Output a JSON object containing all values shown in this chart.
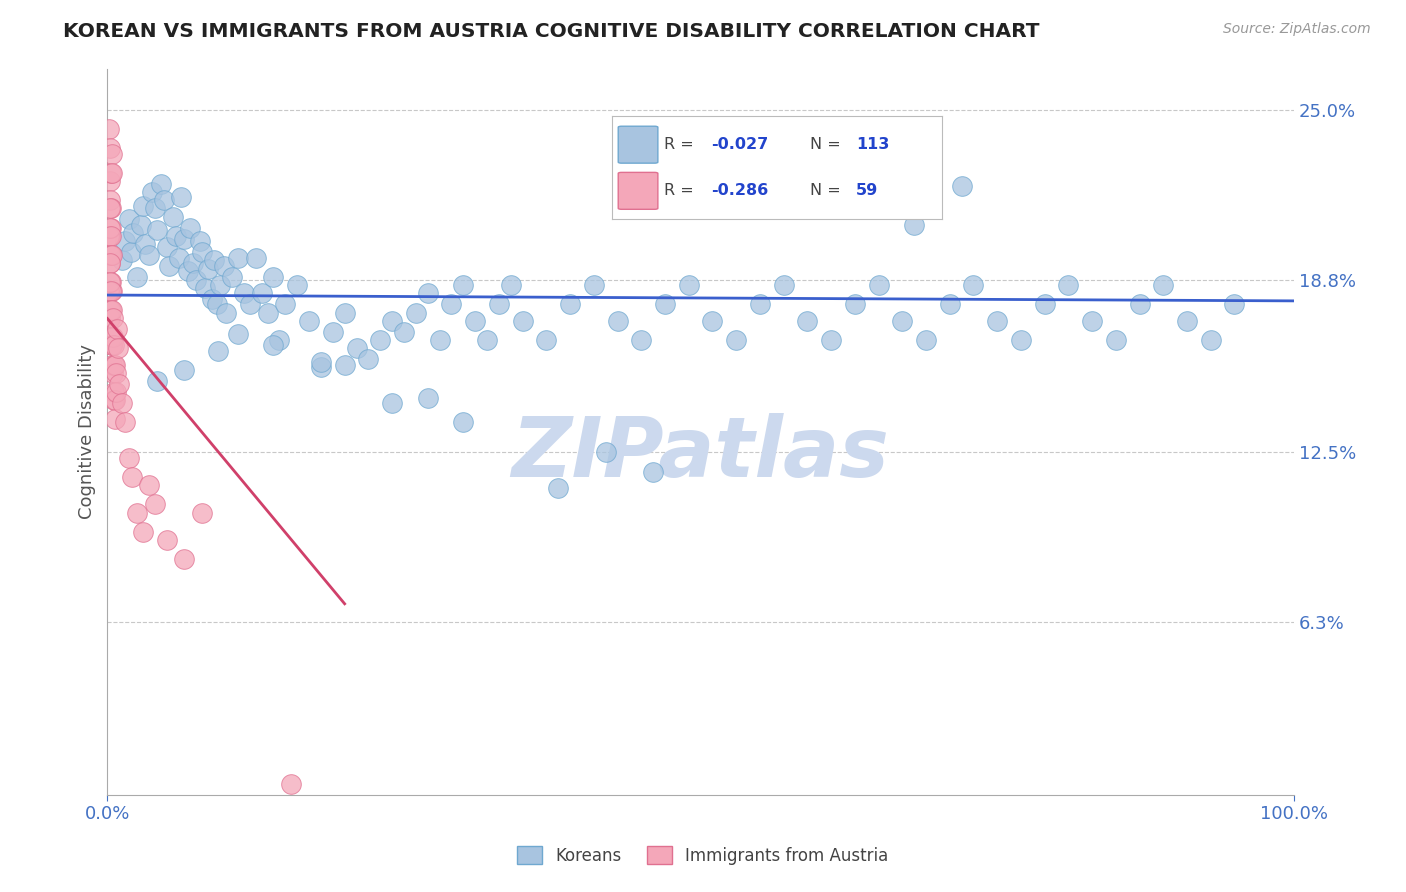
{
  "title": "KOREAN VS IMMIGRANTS FROM AUSTRIA COGNITIVE DISABILITY CORRELATION CHART",
  "source": "Source: ZipAtlas.com",
  "ylabel": "Cognitive Disability",
  "xlim": [
    0.0,
    100.0
  ],
  "ylim": [
    0.0,
    26.5
  ],
  "yticks": [
    6.3,
    12.5,
    18.8,
    25.0
  ],
  "xticklabels": [
    "0.0%",
    "100.0%"
  ],
  "yticklabels": [
    "6.3%",
    "12.5%",
    "18.8%",
    "25.0%"
  ],
  "korean_color": "#a8c4e0",
  "korean_edge": "#6fa8d0",
  "korean_line": "#3a5fcd",
  "austria_color": "#f4a7b9",
  "austria_edge": "#e07090",
  "austria_line": "#d0406a",
  "watermark": "ZIPatlas",
  "watermark_color": "#ccd9ee",
  "background_color": "#ffffff",
  "grid_color": "#c8c8c8",
  "title_color": "#222222",
  "tick_label_color": "#4472c4",
  "R_korean": -0.027,
  "N_korean": 113,
  "R_austria": -0.286,
  "N_austria": 59,
  "korean_x": [
    1.2,
    1.5,
    1.8,
    2.0,
    2.2,
    2.5,
    2.8,
    3.0,
    3.2,
    3.5,
    3.8,
    4.0,
    4.2,
    4.5,
    4.8,
    5.0,
    5.2,
    5.5,
    5.8,
    6.0,
    6.2,
    6.5,
    6.8,
    7.0,
    7.2,
    7.5,
    7.8,
    8.0,
    8.2,
    8.5,
    8.8,
    9.0,
    9.2,
    9.5,
    9.8,
    10.0,
    10.5,
    11.0,
    11.5,
    12.0,
    12.5,
    13.0,
    13.5,
    14.0,
    14.5,
    15.0,
    16.0,
    17.0,
    18.0,
    19.0,
    20.0,
    21.0,
    22.0,
    23.0,
    24.0,
    25.0,
    26.0,
    27.0,
    28.0,
    29.0,
    30.0,
    31.0,
    32.0,
    33.0,
    34.0,
    35.0,
    37.0,
    39.0,
    41.0,
    43.0,
    45.0,
    47.0,
    49.0,
    51.0,
    53.0,
    55.0,
    57.0,
    59.0,
    61.0,
    63.0,
    65.0,
    67.0,
    69.0,
    71.0,
    73.0,
    75.0,
    77.0,
    79.0,
    81.0,
    83.0,
    85.0,
    87.0,
    89.0,
    91.0,
    93.0,
    95.0,
    68.0,
    72.0,
    53.0,
    59.0,
    38.0,
    42.0,
    46.0,
    24.0,
    30.0,
    18.0,
    27.0,
    9.3,
    6.5,
    11.0,
    4.2,
    14.0,
    20.0
  ],
  "korean_y": [
    19.5,
    20.2,
    21.0,
    19.8,
    20.5,
    18.9,
    20.8,
    21.5,
    20.1,
    19.7,
    22.0,
    21.4,
    20.6,
    22.3,
    21.7,
    20.0,
    19.3,
    21.1,
    20.4,
    19.6,
    21.8,
    20.3,
    19.1,
    20.7,
    19.4,
    18.8,
    20.2,
    19.8,
    18.5,
    19.2,
    18.1,
    19.5,
    17.9,
    18.6,
    19.3,
    17.6,
    18.9,
    19.6,
    18.3,
    17.9,
    19.6,
    18.3,
    17.6,
    18.9,
    16.6,
    17.9,
    18.6,
    17.3,
    15.6,
    16.9,
    17.6,
    16.3,
    15.9,
    16.6,
    17.3,
    16.9,
    17.6,
    18.3,
    16.6,
    17.9,
    18.6,
    17.3,
    16.6,
    17.9,
    18.6,
    17.3,
    16.6,
    17.9,
    18.6,
    17.3,
    16.6,
    17.9,
    18.6,
    17.3,
    16.6,
    17.9,
    18.6,
    17.3,
    16.6,
    17.9,
    18.6,
    17.3,
    16.6,
    17.9,
    18.6,
    17.3,
    16.6,
    17.9,
    18.6,
    17.3,
    16.6,
    17.9,
    18.6,
    17.3,
    16.6,
    17.9,
    20.8,
    22.2,
    22.5,
    23.0,
    11.2,
    12.5,
    11.8,
    14.3,
    13.6,
    15.8,
    14.5,
    16.2,
    15.5,
    16.8,
    15.1,
    16.4,
    15.7
  ],
  "austria_x": [
    0.15,
    0.18,
    0.2,
    0.22,
    0.25,
    0.28,
    0.3,
    0.32,
    0.35,
    0.38,
    0.15,
    0.18,
    0.2,
    0.22,
    0.25,
    0.28,
    0.3,
    0.32,
    0.35,
    0.38,
    0.15,
    0.18,
    0.2,
    0.22,
    0.25,
    0.28,
    0.3,
    0.32,
    0.35,
    0.38,
    0.4,
    0.42,
    0.45,
    0.48,
    0.5,
    0.52,
    0.55,
    0.58,
    0.6,
    0.62,
    0.65,
    0.68,
    0.7,
    0.72,
    0.8,
    0.9,
    1.0,
    1.2,
    1.5,
    1.8,
    2.1,
    2.5,
    3.0,
    3.5,
    4.0,
    5.0,
    6.5,
    8.0,
    15.5
  ],
  "austria_y": [
    24.3,
    23.6,
    22.4,
    21.7,
    20.4,
    22.7,
    21.4,
    20.7,
    23.4,
    22.7,
    20.4,
    19.7,
    21.4,
    20.7,
    19.4,
    18.7,
    20.4,
    19.7,
    18.4,
    19.7,
    18.4,
    17.7,
    19.4,
    18.7,
    17.4,
    16.7,
    18.4,
    17.7,
    16.4,
    17.7,
    16.4,
    15.7,
    17.4,
    16.7,
    15.4,
    14.7,
    16.4,
    15.7,
    14.4,
    15.7,
    14.4,
    13.7,
    15.4,
    14.7,
    17.0,
    16.3,
    15.0,
    14.3,
    13.6,
    12.3,
    11.6,
    10.3,
    9.6,
    11.3,
    10.6,
    9.3,
    8.6,
    10.3,
    0.4
  ]
}
